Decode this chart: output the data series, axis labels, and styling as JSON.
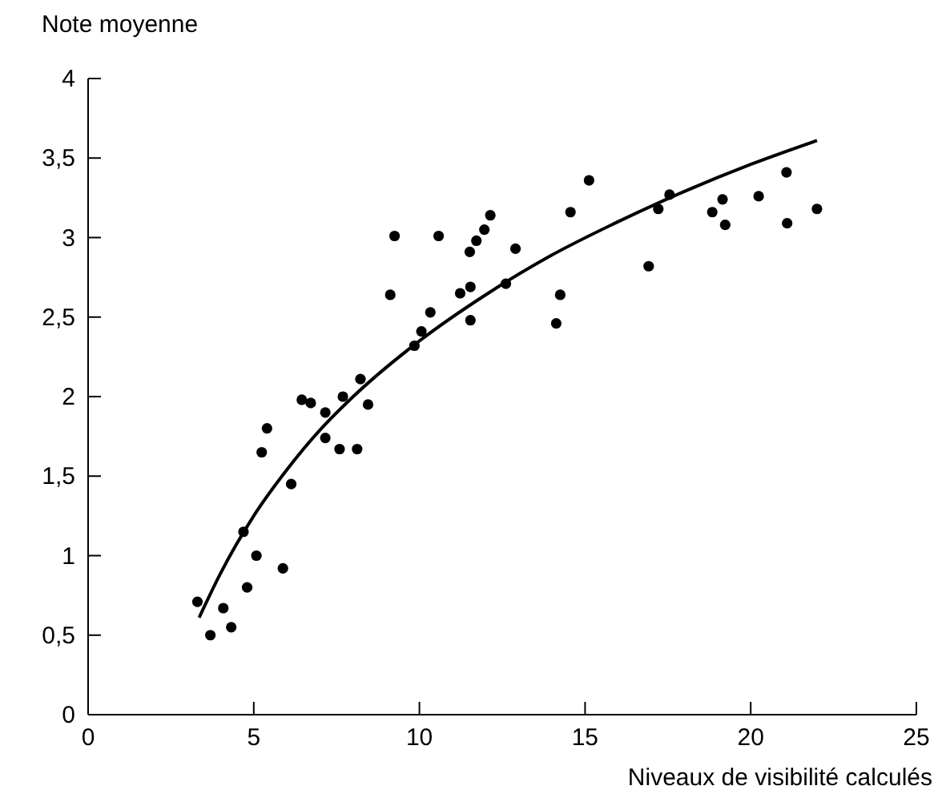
{
  "chart_data": {
    "type": "scatter",
    "xlabel": "Niveaux de visibilité calculés",
    "ylabel": "Note moyenne",
    "xlim": [
      0,
      25
    ],
    "ylim": [
      0,
      4
    ],
    "xticks": [
      0,
      5,
      10,
      15,
      20,
      25
    ],
    "yticks": [
      0,
      {
        "value": 0.5,
        "label": "0,5"
      },
      1,
      {
        "value": 1.5,
        "label": "1,5"
      },
      2,
      {
        "value": 2.5,
        "label": "2,5"
      },
      3,
      {
        "value": 3.5,
        "label": "3,5"
      },
      4
    ],
    "marker": "circle",
    "grid": false,
    "series": [
      {
        "color": "#000000",
        "x": [
          3.3,
          3.69,
          4.08,
          4.32,
          4.69,
          4.8,
          5.08,
          5.24,
          5.4,
          5.88,
          6.13,
          6.45,
          6.72,
          7.16,
          7.16,
          7.59,
          7.69,
          8.12,
          8.22,
          8.45,
          9.25,
          9.12,
          10.58,
          9.85,
          10.06,
          10.33,
          11.23,
          11.54,
          11.54,
          11.52,
          11.72,
          11.96,
          12.14,
          12.61,
          12.9,
          14.13,
          14.25,
          14.56,
          15.12,
          16.92,
          17.21,
          17.55,
          18.84,
          19.15,
          19.23,
          20.24,
          21.08,
          21.1,
          22
        ],
        "values": [
          0.71,
          0.5,
          0.67,
          0.55,
          1.15,
          0.8,
          1.0,
          1.65,
          1.8,
          0.92,
          1.45,
          1.98,
          1.96,
          1.9,
          1.74,
          1.67,
          2.0,
          1.67,
          2.11,
          1.95,
          3.01,
          2.64,
          3.01,
          2.32,
          2.41,
          2.53,
          2.65,
          2.69,
          2.48,
          2.91,
          2.98,
          3.05,
          3.14,
          2.71,
          2.93,
          2.46,
          2.64,
          3.16,
          3.36,
          2.82,
          3.18,
          3.27,
          3.16,
          3.24,
          3.08,
          3.26,
          3.41,
          3.09,
          3.18
        ]
      },
      {
        "type": "line",
        "color": "#000000",
        "marker": "none",
        "x": [
          3.35,
          4,
          5,
          6,
          7,
          8,
          10,
          12,
          14,
          16,
          18,
          20,
          22
        ],
        "values": [
          0.61,
          0.89,
          1.25,
          1.54,
          1.79,
          2.0,
          2.35,
          2.64,
          2.89,
          3.1,
          3.29,
          3.46,
          3.61
        ]
      }
    ]
  }
}
